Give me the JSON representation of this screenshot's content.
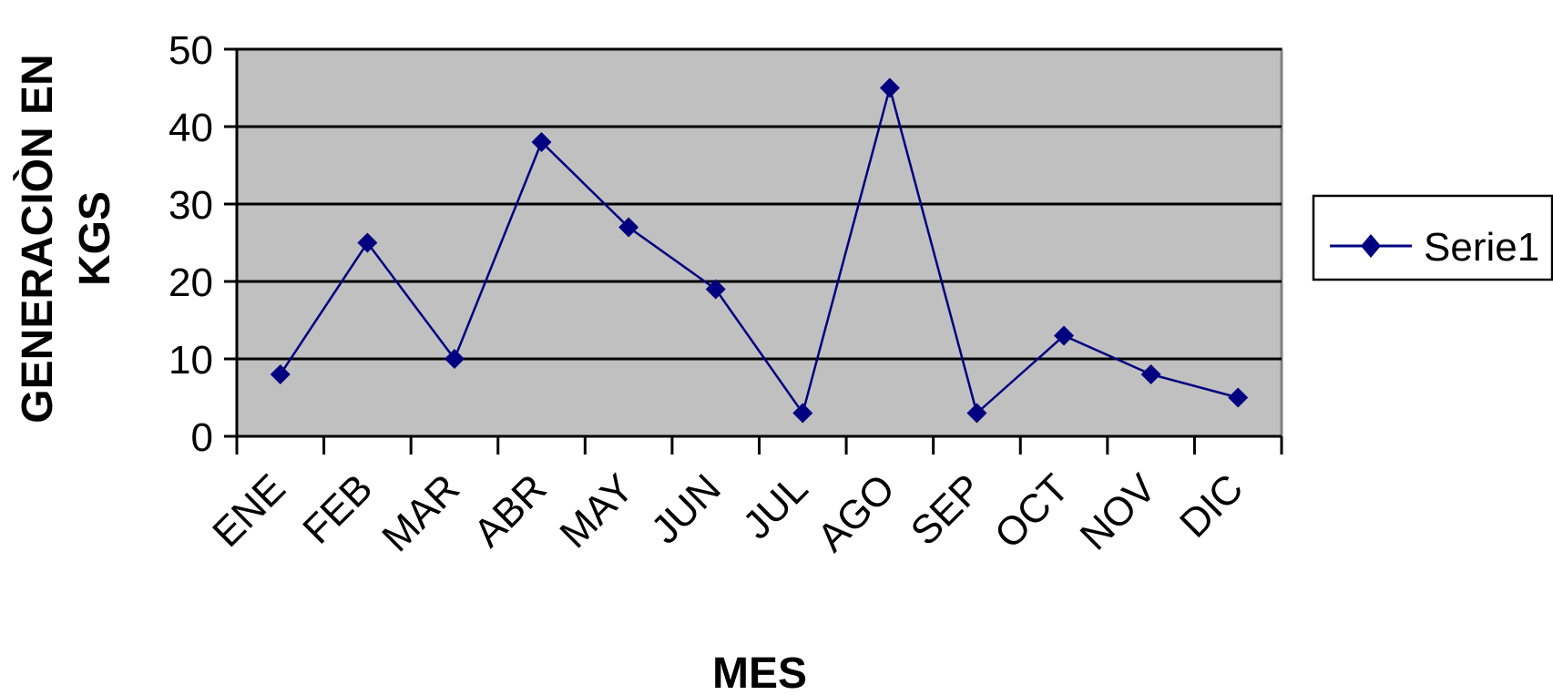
{
  "chart_data": {
    "type": "line",
    "categories": [
      "ENE",
      "FEB",
      "MAR",
      "ABR",
      "MAY",
      "JUN",
      "JUL",
      "AGO",
      "SEP",
      "OCT",
      "NOV",
      "DIC"
    ],
    "series": [
      {
        "name": "Serie1",
        "values": [
          8,
          25,
          10,
          38,
          27,
          19,
          3,
          45,
          3,
          13,
          8,
          5
        ]
      }
    ],
    "title": "",
    "xlabel": "MES",
    "ylabel": [
      "GENERACIÒN EN",
      "KGS"
    ],
    "ylim": [
      0,
      50
    ],
    "yticks": [
      0,
      10,
      20,
      30,
      40,
      50
    ],
    "grid": true,
    "legend_position": "right",
    "colors": {
      "series": "#000080",
      "plot_background": "#c0c0c0",
      "gridlines": "#000000"
    },
    "marker": "diamond"
  }
}
